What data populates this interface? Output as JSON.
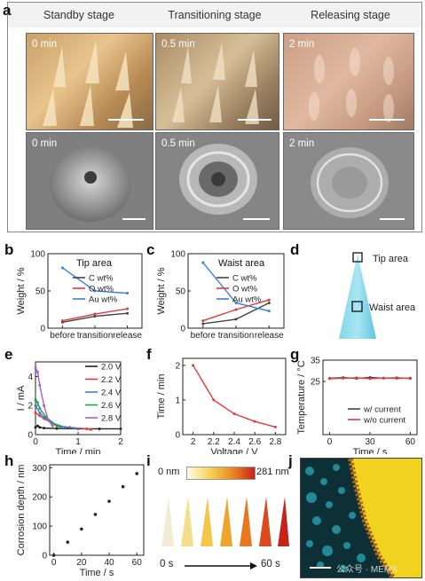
{
  "panel_a": {
    "label": "a",
    "headers": [
      "Standby stage",
      "Transitioning stage",
      "Releasing stage"
    ],
    "row1_times": [
      "0 min",
      "0.5 min",
      "2 min"
    ],
    "row2_times": [
      "0 min",
      "0.5 min",
      "2 min"
    ]
  },
  "panel_b": {
    "label": "b"
  },
  "panel_c": {
    "label": "c"
  },
  "panel_d": {
    "label": "d",
    "tip_label": "Tip area",
    "waist_label": "Waist area"
  },
  "panel_e": {
    "label": "e"
  },
  "panel_f": {
    "label": "f"
  },
  "panel_g": {
    "label": "g"
  },
  "panel_h": {
    "label": "h"
  },
  "panel_i": {
    "label": "i",
    "scale_min": "0 nm",
    "scale_max": "281 nm",
    "time_start": "0 s",
    "time_end": "60 s"
  },
  "panel_j": {
    "label": "j",
    "watermark": "公众号 · MEMS"
  },
  "chart_data": [
    {
      "id": "b",
      "type": "line",
      "annotation": "Tip area",
      "categories": [
        "before",
        "transition",
        "release"
      ],
      "ylabel": "Weight / %",
      "ylim": [
        0,
        100
      ],
      "yticks": [
        0,
        50,
        100
      ],
      "series": [
        {
          "name": "C wt%",
          "color": "#444444",
          "values": [
            8,
            16,
            20
          ]
        },
        {
          "name": "O wt%",
          "color": "#e03a3a",
          "values": [
            10,
            19,
            26
          ]
        },
        {
          "name": "Au wt%",
          "color": "#3b7fd4",
          "values": [
            81,
            50,
            47
          ]
        }
      ]
    },
    {
      "id": "c",
      "type": "line",
      "annotation": "Waist area",
      "categories": [
        "before",
        "transition",
        "release"
      ],
      "ylabel": "Weight / %",
      "ylim": [
        0,
        100
      ],
      "yticks": [
        0,
        50,
        100
      ],
      "series": [
        {
          "name": "C wt%",
          "color": "#444444",
          "values": [
            6,
            12,
            34
          ]
        },
        {
          "name": "O wt%",
          "color": "#e03a3a",
          "values": [
            10,
            25,
            38
          ]
        },
        {
          "name": "Au wt%",
          "color": "#3b7fd4",
          "values": [
            88,
            34,
            23
          ]
        }
      ]
    },
    {
      "id": "e",
      "type": "line",
      "xlabel": "Time / min",
      "ylabel": "I / mA",
      "xlim": [
        0,
        2
      ],
      "xticks": [
        0,
        1,
        2
      ],
      "ylim": [
        0,
        5
      ],
      "yticks": [
        0,
        2,
        4
      ],
      "series": [
        {
          "name": "2.0 V",
          "color": "#222222",
          "x": [
            0,
            0.05,
            0.1,
            0.2,
            0.5,
            1.0,
            1.5,
            2.0
          ],
          "y": [
            0.5,
            0.6,
            0.5,
            0.45,
            0.42,
            0.4,
            0.4,
            0.4
          ]
        },
        {
          "name": "2.2 V",
          "color": "#e03a3a",
          "x": [
            0,
            0.1,
            0.2,
            0.5,
            0.8,
            1.2,
            1.3
          ],
          "y": [
            1.5,
            1.3,
            1.1,
            0.6,
            0.5,
            0.4,
            0.35
          ]
        },
        {
          "name": "2.4 V",
          "color": "#3b7fd4",
          "x": [
            0,
            0.1,
            0.2,
            0.4,
            0.7,
            1.0
          ],
          "y": [
            2.0,
            1.5,
            1.2,
            0.8,
            0.5,
            0.4
          ]
        },
        {
          "name": "2.6 V",
          "color": "#1fa34a",
          "x": [
            0,
            0.05,
            0.1,
            0.25,
            0.5,
            0.6
          ],
          "y": [
            2.4,
            2.2,
            1.8,
            1.2,
            0.6,
            0.5
          ]
        },
        {
          "name": "2.8 V",
          "color": "#b05ac8",
          "x": [
            0,
            0.05,
            0.1,
            0.2,
            0.3,
            0.4
          ],
          "y": [
            4.6,
            4.3,
            3.4,
            2.0,
            1.0,
            0.6
          ]
        }
      ]
    },
    {
      "id": "f",
      "type": "line",
      "xlabel": "Voltage / V",
      "ylabel": "Time / min",
      "xlim": [
        1.9,
        2.9
      ],
      "xticks": [
        2.0,
        2.2,
        2.4,
        2.6,
        2.8
      ],
      "ylim": [
        0,
        2.2
      ],
      "yticks": [
        0,
        1,
        2
      ],
      "series": [
        {
          "name": "",
          "color": "#e03a3a",
          "x": [
            2.0,
            2.2,
            2.4,
            2.6,
            2.8
          ],
          "y": [
            2.0,
            1.0,
            0.6,
            0.38,
            0.22
          ]
        }
      ]
    },
    {
      "id": "g",
      "type": "line",
      "xlabel": "Time / s",
      "ylabel": "Temperature / °C",
      "xlim": [
        -5,
        65
      ],
      "xticks": [
        0,
        30,
        60
      ],
      "ylim": [
        0,
        35
      ],
      "yticks": [
        25,
        35
      ],
      "series": [
        {
          "name": "w/ current",
          "color": "#444444",
          "x": [
            0,
            10,
            20,
            30,
            40,
            50,
            60
          ],
          "y": [
            26.5,
            26.8,
            26.4,
            26.9,
            26.5,
            26.7,
            26.4
          ]
        },
        {
          "name": "w/o current",
          "color": "#e03a3a",
          "x": [
            0,
            10,
            20,
            30,
            40,
            50,
            60
          ],
          "y": [
            26.3,
            26.5,
            26.7,
            26.3,
            26.6,
            26.4,
            26.6
          ]
        }
      ]
    },
    {
      "id": "h",
      "type": "scatter",
      "xlabel": "Time / s",
      "ylabel": "Corrosion depth / nm",
      "xlim": [
        -3,
        65
      ],
      "xticks": [
        0,
        20,
        40,
        60
      ],
      "ylim": [
        0,
        310
      ],
      "yticks": [
        0,
        100,
        200,
        300
      ],
      "series": [
        {
          "name": "",
          "color": "#222222",
          "x": [
            0,
            10,
            20,
            30,
            40,
            50,
            60
          ],
          "y": [
            0,
            45,
            90,
            140,
            185,
            235,
            280
          ]
        }
      ]
    }
  ]
}
